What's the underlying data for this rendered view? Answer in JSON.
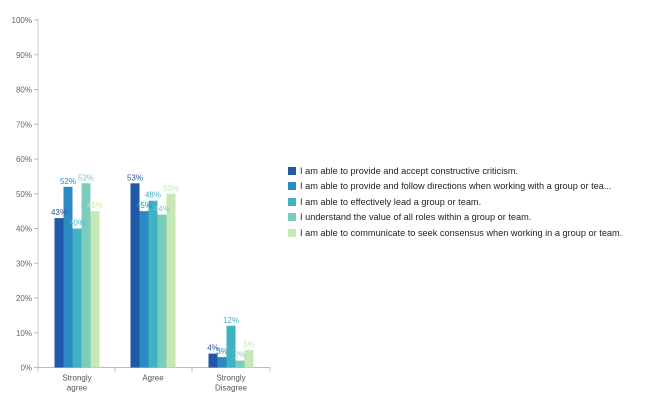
{
  "chart_data": {
    "type": "bar",
    "categories": [
      [
        "Strongly",
        "agree"
      ],
      [
        "Agree"
      ],
      [
        "Strongly",
        "Disagree"
      ]
    ],
    "series": [
      {
        "name": "I am able to provide and accept constructive criticism.",
        "values": [
          43,
          53,
          4
        ],
        "labels": [
          "43%",
          "53%",
          "4%"
        ],
        "color": "#2159a8"
      },
      {
        "name": "I am able to provide and follow directions when working with a group or tea...",
        "values": [
          52,
          45,
          3
        ],
        "labels": [
          "52%",
          "45%",
          "3%"
        ],
        "color": "#2b8ac2"
      },
      {
        "name": "I am able to effectively lead a group or team.",
        "values": [
          40,
          48,
          12
        ],
        "labels": [
          "40%",
          "48%",
          "12%"
        ],
        "color": "#3fb2c6"
      },
      {
        "name": "I understand the value of all roles within a group or team.",
        "values": [
          53,
          44,
          2
        ],
        "labels": [
          "53%",
          "44%",
          "2%"
        ],
        "color": "#7acdbc"
      },
      {
        "name": "I am able to communicate to seek consensus when working in a group or team.",
        "values": [
          45,
          50,
          5
        ],
        "labels": [
          "45%",
          "50%",
          "5%"
        ],
        "color": "#c5e8b4"
      }
    ],
    "ylim": [
      0,
      100
    ],
    "yticks": [
      "0%",
      "10%",
      "20%",
      "30%",
      "40%",
      "50%",
      "60%",
      "70%",
      "80%",
      "90%",
      "100%"
    ],
    "legend": "right",
    "grid": false
  }
}
